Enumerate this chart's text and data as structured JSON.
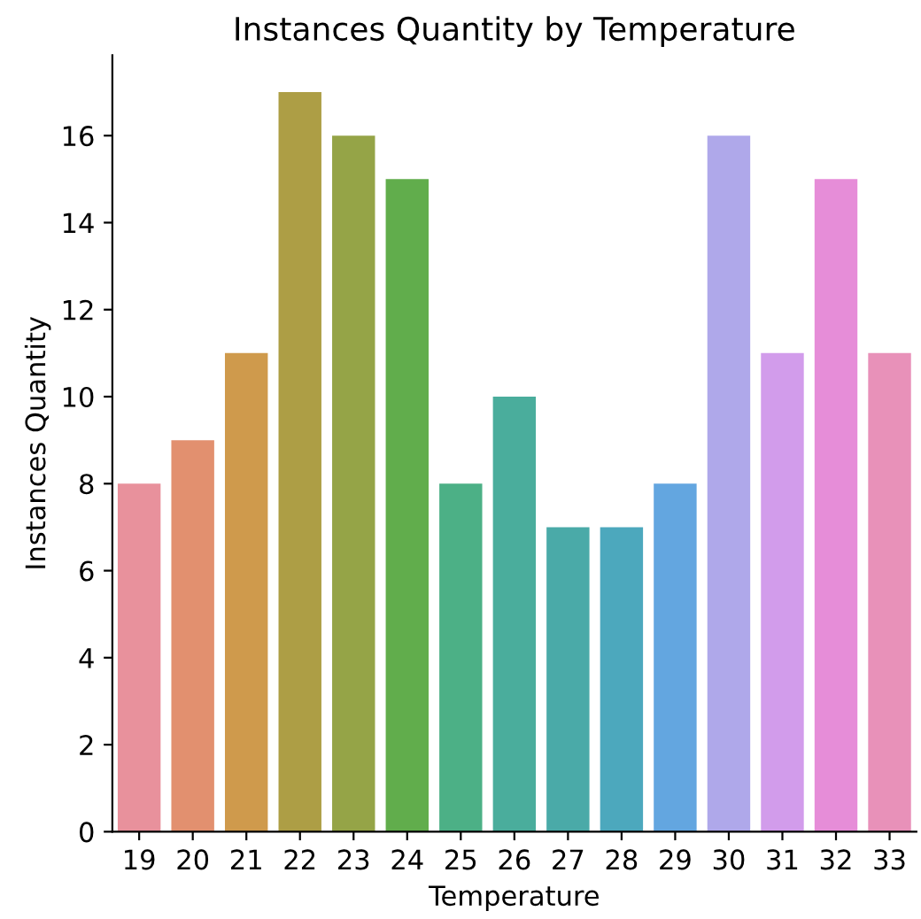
{
  "chart_data": {
    "type": "bar",
    "title": "Instances Quantity by Temperature",
    "xlabel": "Temperature",
    "ylabel": "Instances Quantity",
    "categories": [
      "19",
      "20",
      "21",
      "22",
      "23",
      "24",
      "25",
      "26",
      "27",
      "28",
      "29",
      "30",
      "31",
      "32",
      "33"
    ],
    "values": [
      8,
      9,
      11,
      17,
      16,
      15,
      8,
      10,
      7,
      7,
      8,
      16,
      11,
      15,
      11
    ],
    "colors": [
      "#e8919c",
      "#e2906f",
      "#cf9a4c",
      "#ad9e45",
      "#95a447",
      "#61ad4c",
      "#4cb086",
      "#4aad9c",
      "#4aaaa8",
      "#4ca8bd",
      "#63a6e0",
      "#afa8ea",
      "#d29ceb",
      "#e68dd8",
      "#e891b9"
    ],
    "ylim": [
      0,
      17.85
    ],
    "yticks": [
      0,
      2,
      4,
      6,
      8,
      10,
      12,
      14,
      16
    ],
    "grid": false,
    "legend": false
  }
}
